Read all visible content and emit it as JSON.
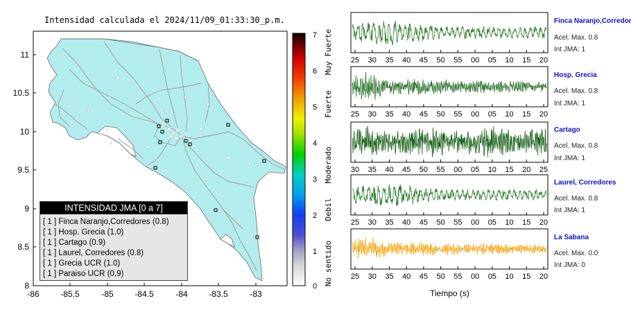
{
  "map": {
    "title": "Intensidad calculada el 2024/11/09_01:33:30_p.m.",
    "x_ticks": [
      "-86",
      "-85.5",
      "-85",
      "-84.5",
      "-84",
      "-83.5",
      "-83"
    ],
    "y_ticks": [
      "11",
      "10.5",
      "10",
      "9.5",
      "9",
      "8.5",
      "8"
    ],
    "colors": {
      "land": "#b3ecec",
      "sea": "#ffffff",
      "roads": "#9a9a9a"
    }
  },
  "scale": {
    "ticks": [
      "7",
      "6",
      "5",
      "4",
      "3",
      "2",
      "1",
      "0"
    ],
    "labels": [
      "Muy Fuerte",
      "Fuerte",
      "Moderado",
      "Debil",
      "No sentido"
    ]
  },
  "legend": {
    "title": "INTENSIDAD JMA [0 a 7]",
    "items": [
      "[ 1 ]  Finca Naranjo,Corredores (0.8)",
      "[ 1 ]  Hosp. Grecia (1.0)",
      "[ 1 ]  Cartago (0.9)",
      "[ 1 ]  Laurel, Corredores (0.8)",
      "[ 1 ]  Grecia UCR (1.0)",
      "[ 1 ]  Paraiso UCR (0.9)"
    ]
  },
  "chart_data": [
    {
      "type": "line",
      "station": "Finca Naranjo,Corredores",
      "acel": "Acel. Max. 0.8",
      "int": "Int JMA: 1",
      "color": "#2e7d2e",
      "x_ticks": [
        "25",
        "30",
        "35",
        "40",
        "45",
        "50",
        "55",
        "00",
        "05",
        "10",
        "15",
        "20"
      ],
      "seed": 3,
      "amp": 0.85,
      "style": "swell"
    },
    {
      "type": "line",
      "station": "Hosp. Grecia",
      "acel": "Acel. Max. 0.8",
      "int": "Int JMA: 1",
      "color": "#1f6b1f",
      "x_ticks": [
        "25",
        "30",
        "35",
        "40",
        "45",
        "50",
        "55",
        "00",
        "05",
        "10",
        "15",
        "20"
      ],
      "seed": 7,
      "amp": 0.8,
      "style": "burst"
    },
    {
      "type": "line",
      "station": "Cartago",
      "acel": "Acel. Max. 0.8",
      "int": "Int JMA: 1",
      "color": "#0f5c0f",
      "x_ticks": [
        "30",
        "35",
        "40",
        "45",
        "50",
        "55",
        "00",
        "05",
        "10",
        "15",
        "20",
        "25"
      ],
      "seed": 11,
      "amp": 0.75,
      "style": "dense"
    },
    {
      "type": "line",
      "station": "Laurel, Corredores",
      "acel": "Acel. Max. 0.8",
      "int": "Int JMA: 1",
      "color": "#2e7d2e",
      "x_ticks": [
        "25",
        "30",
        "35",
        "40",
        "45",
        "50",
        "55",
        "00",
        "05",
        "10",
        "15",
        "20"
      ],
      "seed": 19,
      "amp": 0.8,
      "style": "swell"
    },
    {
      "type": "line",
      "station": "La Sabana",
      "acel": "Acel. Max. 0.0",
      "int": "Int JMA: 0",
      "color": "#f5a000",
      "x_ticks": [
        "25",
        "30",
        "35",
        "40",
        "45",
        "50",
        "55",
        "00",
        "05",
        "10",
        "15",
        "20"
      ],
      "seed": 23,
      "amp": 0.7,
      "style": "burst",
      "xlabel": "Tiempo (s)"
    }
  ]
}
